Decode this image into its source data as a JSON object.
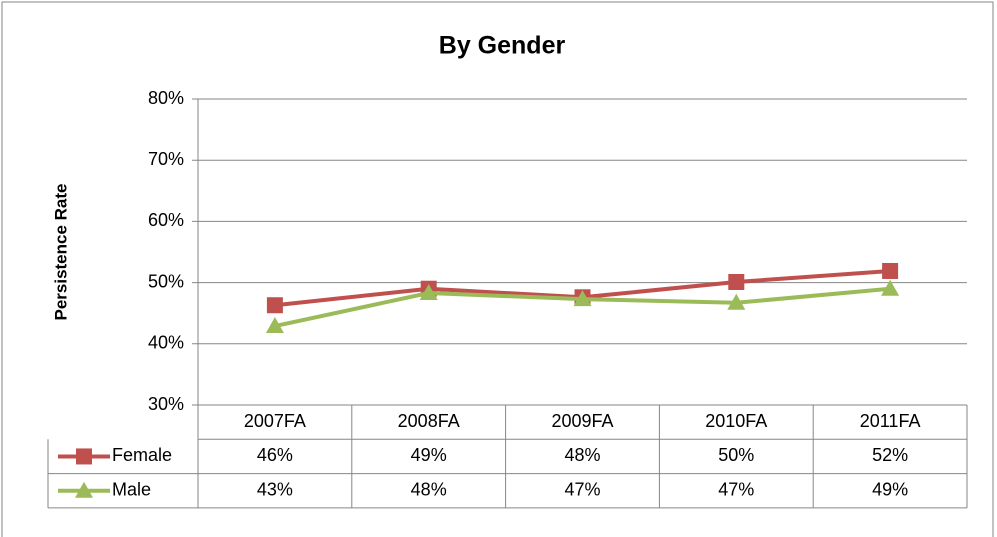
{
  "chart_data": {
    "type": "line",
    "title": "By Gender",
    "y_label": "Persistence Rate",
    "categories": [
      "2007FA",
      "2008FA",
      "2009FA",
      "2010FA",
      "2011FA"
    ],
    "series": [
      {
        "name": "Female",
        "color": "#c0504d",
        "marker": "square",
        "values": [
          46.3,
          49.0,
          47.6,
          50.1,
          51.9
        ],
        "value_labels": [
          "46%",
          "49%",
          "48%",
          "50%",
          "52%"
        ]
      },
      {
        "name": "Male",
        "color": "#9bbb59",
        "marker": "triangle",
        "values": [
          42.9,
          48.3,
          47.3,
          46.7,
          49.0
        ],
        "value_labels": [
          "43%",
          "48%",
          "47%",
          "47%",
          "49%"
        ]
      }
    ],
    "ylim": [
      30,
      80
    ],
    "yticks": [
      {
        "value": 30,
        "label": "30%"
      },
      {
        "value": 40,
        "label": "40%"
      },
      {
        "value": 50,
        "label": "50%"
      },
      {
        "value": 60,
        "label": "60%"
      },
      {
        "value": 70,
        "label": "70%"
      },
      {
        "value": 80,
        "label": "80%"
      }
    ],
    "grid": true
  }
}
